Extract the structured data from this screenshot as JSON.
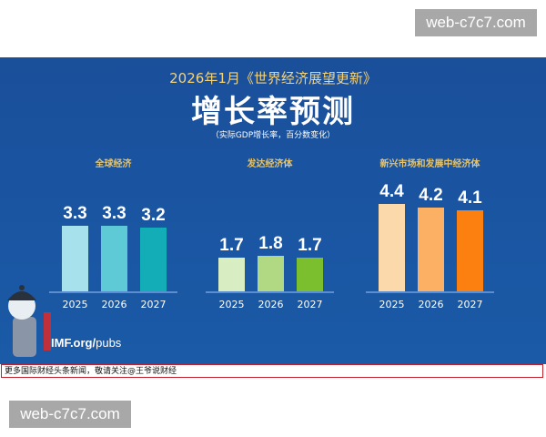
{
  "watermarks": [
    "web-c7c7.com",
    "web-c7c7.com"
  ],
  "header": {
    "suptitle": "2026年1月《世界经济展望更新》",
    "title": "增长率预测",
    "subtitle": "（实际GDP增长率，百分数变化）"
  },
  "source": {
    "bold": "IMF.org/",
    "rest": "pubs"
  },
  "caption": "更多国际财经头条新闻，敬请关注@王爷说财经",
  "chart_data": [
    {
      "type": "bar",
      "title": "全球经济",
      "categories": [
        "2025",
        "2026",
        "2027"
      ],
      "values": [
        3.3,
        3.3,
        3.2
      ],
      "colors": [
        "#a6e1ec",
        "#5dcad6",
        "#12adb6"
      ]
    },
    {
      "type": "bar",
      "title": "发达经济体",
      "categories": [
        "2025",
        "2026",
        "2027"
      ],
      "values": [
        1.7,
        1.8,
        1.7
      ],
      "colors": [
        "#d9edc2",
        "#b1d883",
        "#7cbf2e"
      ]
    },
    {
      "type": "bar",
      "title": "新兴市场和发展中经济体",
      "categories": [
        "2025",
        "2026",
        "2027"
      ],
      "values": [
        4.4,
        4.2,
        4.1
      ],
      "colors": [
        "#fcd9aa",
        "#fbb063",
        "#fb8010"
      ]
    }
  ]
}
